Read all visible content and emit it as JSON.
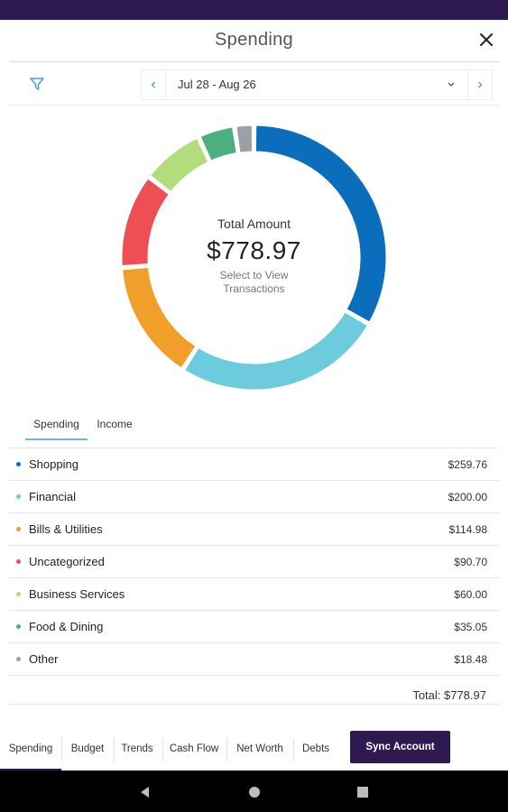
{
  "header": {
    "title": "Spending",
    "close_icon": "close-icon"
  },
  "date_range": {
    "label": "Jul 28 - Aug 26",
    "filter_icon": "filter-icon",
    "prev_icon": "chevron-left-icon",
    "next_icon": "chevron-right-icon",
    "caret_icon": "chevron-down-icon"
  },
  "summary": {
    "label": "Total Amount",
    "value": "$778.97",
    "hint_line1": "Select to View",
    "hint_line2": "Transactions"
  },
  "tabs": [
    {
      "label": "Spending",
      "active": true
    },
    {
      "label": "Income",
      "active": false
    }
  ],
  "categories": [
    {
      "name": "Shopping",
      "amount": "$259.76",
      "value": 259.76,
      "color": "#0a6ebd"
    },
    {
      "name": "Financial",
      "amount": "$200.00",
      "value": 200.0,
      "color": "#6ccbdd"
    },
    {
      "name": "Bills & Utilities",
      "amount": "$114.98",
      "value": 114.98,
      "color": "#f0a02a"
    },
    {
      "name": "Uncategorized",
      "amount": "$90.70",
      "value": 90.7,
      "color": "#ed4f55"
    },
    {
      "name": "Business Services",
      "amount": "$60.00",
      "value": 60.0,
      "color": "#b3dc7c"
    },
    {
      "name": "Food & Dining",
      "amount": "$35.05",
      "value": 35.05,
      "color": "#4caf7e"
    },
    {
      "name": "Other",
      "amount": "$18.48",
      "value": 18.48,
      "color": "#9aa0a6"
    }
  ],
  "total_row": {
    "text": "Total: $778.97"
  },
  "bottom_nav": {
    "items": [
      "Spending",
      "Budget",
      "Trends",
      "Cash Flow",
      "Net Worth",
      "Debts"
    ],
    "active": "Spending",
    "sync_label": "Sync Account"
  },
  "colors": {
    "brand": "#2e1a4f",
    "accent": "#69b8d6"
  }
}
